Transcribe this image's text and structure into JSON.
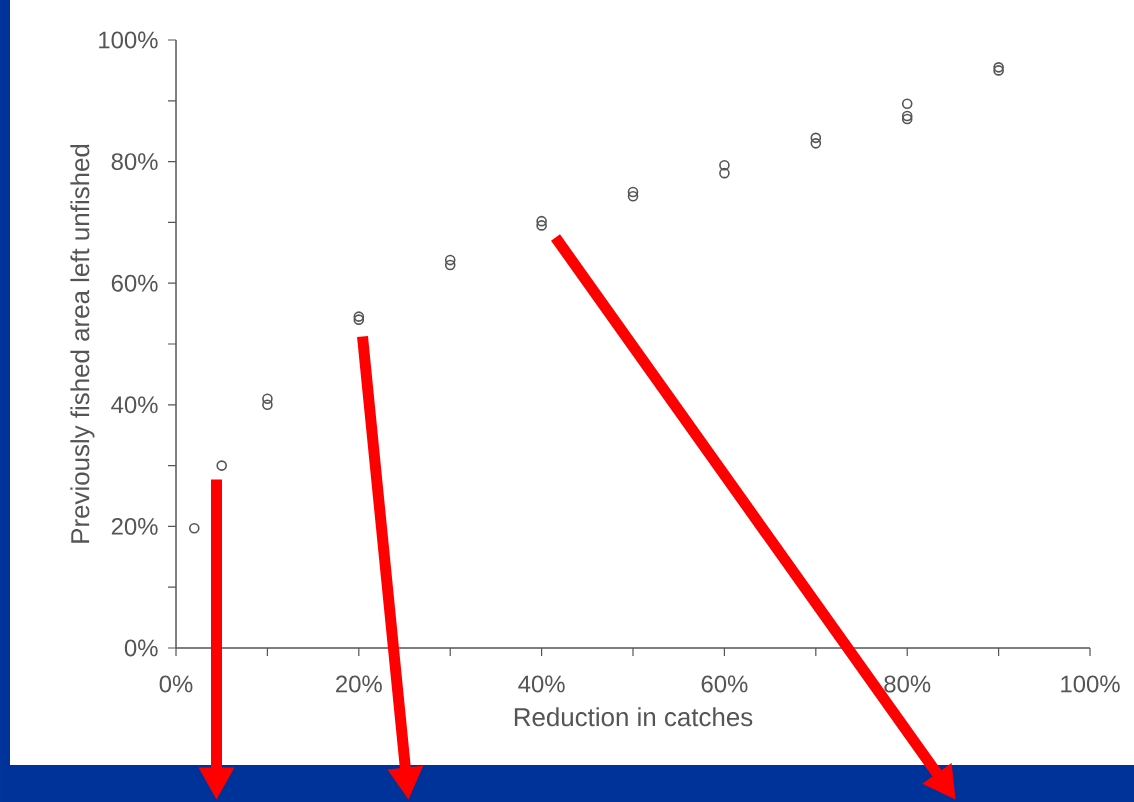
{
  "chart_data": {
    "type": "scatter",
    "xlabel": "Reduction in catches",
    "ylabel": "Previously fished area left unfished",
    "x": [
      2,
      5,
      10,
      10,
      20,
      20,
      30,
      30,
      40,
      40,
      50,
      50,
      60,
      60,
      70,
      70,
      80,
      80,
      80,
      90,
      90
    ],
    "values": [
      19.7,
      30,
      40,
      41,
      54,
      54.5,
      63,
      63.8,
      69.5,
      70.2,
      74.3,
      75,
      78.1,
      79.4,
      83,
      83.9,
      87,
      87.5,
      89.5,
      95,
      95.5
    ],
    "color": "#555555",
    "marker": "circle",
    "grid": false,
    "xlim": [
      0,
      100
    ],
    "ylim": [
      0,
      100
    ],
    "xticks": [
      {
        "value": 0,
        "label": "0%"
      },
      {
        "value": 10,
        "label": null
      },
      {
        "value": 20,
        "label": "20%"
      },
      {
        "value": 30,
        "label": null
      },
      {
        "value": 40,
        "label": "40%"
      },
      {
        "value": 50,
        "label": null
      },
      {
        "value": 60,
        "label": "60%"
      },
      {
        "value": 70,
        "label": null
      },
      {
        "value": 80,
        "label": "80%"
      },
      {
        "value": 90,
        "label": null
      },
      {
        "value": 100,
        "label": "100%"
      }
    ],
    "yticks": [
      {
        "value": 0,
        "label": "0%"
      },
      {
        "value": 10,
        "label": null
      },
      {
        "value": 20,
        "label": "20%"
      },
      {
        "value": 30,
        "label": null
      },
      {
        "value": 40,
        "label": "40%"
      },
      {
        "value": 50,
        "label": null
      },
      {
        "value": 60,
        "label": "60%"
      },
      {
        "value": 70,
        "label": null
      },
      {
        "value": 80,
        "label": "80%"
      },
      {
        "value": 90,
        "label": null
      },
      {
        "value": 100,
        "label": "100%"
      }
    ]
  }
}
